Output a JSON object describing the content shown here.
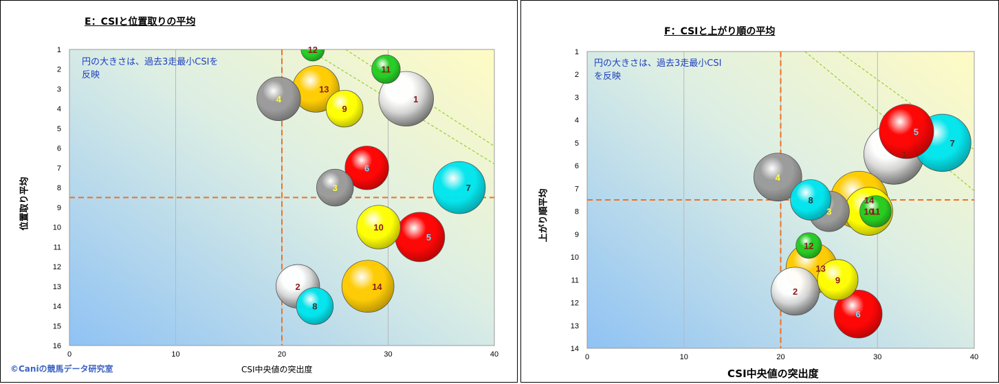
{
  "charts": [
    {
      "id": "E",
      "title": "E：CSIと位置取りの平均",
      "xlabel": "CSI中央値の突出度",
      "ylabel": "位置取り平均",
      "note": "円の大きさは、過去3走最小CSIを\n反映",
      "copyright": "©Caniの競馬データ研究室"
    },
    {
      "id": "F",
      "title": "F：CSIと上がり順の平均",
      "xlabel": "CSI中央値の突出度",
      "ylabel": "上がり順平均",
      "note": "円の大きさは、過去3走最小CSI\nを反映"
    }
  ],
  "chart_data": [
    {
      "type": "bubble",
      "title": "E：CSIと位置取りの平均",
      "xlabel": "CSI中央値の突出度",
      "ylabel": "位置取り平均",
      "xlim": [
        0,
        40
      ],
      "ylim": [
        1,
        16
      ],
      "y_reversed": true,
      "x_ticks": [
        0,
        10,
        20,
        30,
        40
      ],
      "y_ticks": [
        1,
        2,
        3,
        4,
        5,
        6,
        7,
        8,
        9,
        10,
        11,
        12,
        13,
        14,
        15,
        16
      ],
      "grid": true,
      "reference_lines": {
        "x": 20,
        "y": 8.5
      },
      "points": [
        {
          "label": "1",
          "x": 31.7,
          "y": 3.5,
          "size": 11,
          "color": "#ffffff"
        },
        {
          "label": "2",
          "x": 21.5,
          "y": 13.0,
          "size": 7,
          "color": "#ffffff"
        },
        {
          "label": "3",
          "x": 25.0,
          "y": 8.0,
          "size": 5,
          "color": "#9a9a9a"
        },
        {
          "label": "4",
          "x": 19.7,
          "y": 3.5,
          "size": 7,
          "color": "#9a9a9a"
        },
        {
          "label": "5",
          "x": 33.0,
          "y": 10.5,
          "size": 9,
          "color": "#ff0000"
        },
        {
          "label": "6",
          "x": 28.0,
          "y": 7.0,
          "size": 7,
          "color": "#ff0000"
        },
        {
          "label": "7",
          "x": 36.7,
          "y": 8.0,
          "size": 10,
          "color": "#00e5ee"
        },
        {
          "label": "8",
          "x": 23.1,
          "y": 14.0,
          "size": 5,
          "color": "#00e5ee"
        },
        {
          "label": "9",
          "x": 25.9,
          "y": 4.0,
          "size": 5,
          "color": "#ffff00"
        },
        {
          "label": "10",
          "x": 29.1,
          "y": 10.0,
          "size": 7,
          "color": "#ffff00"
        },
        {
          "label": "11",
          "x": 29.8,
          "y": 2.0,
          "size": 3,
          "color": "#22cc22"
        },
        {
          "label": "12",
          "x": 22.9,
          "y": 1.0,
          "size": 2,
          "color": "#22cc22"
        },
        {
          "label": "13",
          "x": 23.2,
          "y": 3.0,
          "size": 8,
          "color": "#ffcc00"
        },
        {
          "label": "14",
          "x": 28.1,
          "y": 13.0,
          "size": 10,
          "color": "#ffcc00"
        }
      ]
    },
    {
      "type": "bubble",
      "title": "F：CSIと上がり順の平均",
      "xlabel": "CSI中央値の突出度",
      "ylabel": "上がり順平均",
      "xlim": [
        0,
        40
      ],
      "ylim": [
        1,
        14
      ],
      "y_reversed": true,
      "x_ticks": [
        0,
        10,
        20,
        30,
        40
      ],
      "y_ticks": [
        1,
        2,
        3,
        4,
        5,
        6,
        7,
        8,
        9,
        10,
        11,
        12,
        13,
        14
      ],
      "grid": true,
      "reference_lines": {
        "x": 20,
        "y": 7.5
      },
      "points": [
        {
          "label": "1",
          "x": 31.7,
          "y": 5.5,
          "size": 11,
          "color": "#ffffff"
        },
        {
          "label": "2",
          "x": 21.5,
          "y": 11.5,
          "size": 7,
          "color": "#ffffff"
        },
        {
          "label": "3",
          "x": 25.0,
          "y": 8.0,
          "size": 5,
          "color": "#9a9a9a"
        },
        {
          "label": "4",
          "x": 19.7,
          "y": 6.5,
          "size": 7,
          "color": "#9a9a9a"
        },
        {
          "label": "5",
          "x": 33.0,
          "y": 4.5,
          "size": 9,
          "color": "#ff0000"
        },
        {
          "label": "6",
          "x": 28.0,
          "y": 12.5,
          "size": 7,
          "color": "#ff0000"
        },
        {
          "label": "7",
          "x": 36.7,
          "y": 5.0,
          "size": 10,
          "color": "#00e5ee"
        },
        {
          "label": "8",
          "x": 23.1,
          "y": 7.5,
          "size": 5,
          "color": "#00e5ee"
        },
        {
          "label": "9",
          "x": 25.9,
          "y": 11.0,
          "size": 5,
          "color": "#ffff00"
        },
        {
          "label": "10",
          "x": 29.1,
          "y": 8.0,
          "size": 7,
          "color": "#ffff00"
        },
        {
          "label": "11",
          "x": 29.8,
          "y": 8.0,
          "size": 3,
          "color": "#22cc22"
        },
        {
          "label": "12",
          "x": 22.9,
          "y": 9.5,
          "size": 2,
          "color": "#22cc22"
        },
        {
          "label": "13",
          "x": 23.2,
          "y": 10.5,
          "size": 8,
          "color": "#ffcc00"
        },
        {
          "label": "14",
          "x": 28.1,
          "y": 7.5,
          "size": 10,
          "color": "#ffcc00"
        }
      ]
    }
  ]
}
